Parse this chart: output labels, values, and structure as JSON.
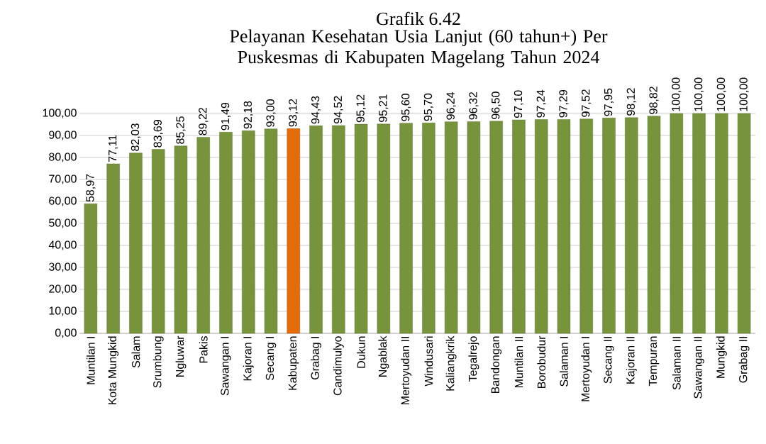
{
  "chart_data": {
    "type": "bar",
    "title": "Grafik 6.42",
    "subtitle": "Pelayanan Kesehatan Usia Lanjut (60 tahun+) Per Puskesmas di Kabupaten Magelang Tahun 2024",
    "categories": [
      "Muntilan I",
      "Kota Mungkid",
      "Salam",
      "Srumbung",
      "Ngluwar",
      "Pakis",
      "Sawangan I",
      "Kajoran I",
      "Secang I",
      "Kabupaten",
      "Grabag I",
      "Candimulyo",
      "Dukun",
      "Ngablak",
      "Mertoyudan II",
      "Windusari",
      "Kaliangkrik",
      "Tegalrejo",
      "Bandongan",
      "Muntilan II",
      "Borobudur",
      "Salaman I",
      "Mertoyudan I",
      "Secang II",
      "Kajoran II",
      "Tempuran",
      "Salaman II",
      "Sawangan II",
      "Mungkid",
      "Grabag II"
    ],
    "values": [
      58.97,
      77.11,
      82.03,
      83.69,
      85.25,
      89.22,
      91.49,
      92.18,
      93.0,
      93.12,
      94.43,
      94.52,
      95.12,
      95.21,
      95.6,
      95.7,
      96.24,
      96.32,
      96.5,
      97.1,
      97.24,
      97.29,
      97.52,
      97.95,
      98.12,
      98.82,
      100,
      100,
      100,
      100
    ],
    "value_labels": [
      "58,97",
      "77,11",
      "82,03",
      "83,69",
      "85,25",
      "89,22",
      "91,49",
      "92,18",
      "93,00",
      "93,12",
      "94,43",
      "94,52",
      "95,12",
      "95,21",
      "95,60",
      "95,70",
      "96,24",
      "96,32",
      "96,50",
      "97,10",
      "97,24",
      "97,29",
      "97,52",
      "97,95",
      "98,12",
      "98,82",
      "100,00",
      "100,00",
      "100,00",
      "100,00"
    ],
    "colors": [
      "#77933c",
      "#77933c",
      "#77933c",
      "#77933c",
      "#77933c",
      "#77933c",
      "#77933c",
      "#77933c",
      "#77933c",
      "#e46c0a",
      "#77933c",
      "#77933c",
      "#77933c",
      "#77933c",
      "#77933c",
      "#77933c",
      "#77933c",
      "#77933c",
      "#77933c",
      "#77933c",
      "#77933c",
      "#77933c",
      "#77933c",
      "#77933c",
      "#77933c",
      "#77933c",
      "#77933c",
      "#77933c",
      "#77933c",
      "#77933c"
    ],
    "ylim": [
      0,
      100
    ],
    "yticks": [
      {
        "value": 0,
        "label": "0,00"
      },
      {
        "value": 10,
        "label": "10,00"
      },
      {
        "value": 20,
        "label": "20,00"
      },
      {
        "value": 30,
        "label": "30,00"
      },
      {
        "value": 40,
        "label": "40,00"
      },
      {
        "value": 50,
        "label": "50,00"
      },
      {
        "value": 60,
        "label": "60,00"
      },
      {
        "value": 70,
        "label": "70,00"
      },
      {
        "value": 80,
        "label": "80,00"
      },
      {
        "value": 90,
        "label": "90,00"
      },
      {
        "value": 100,
        "label": "100,00"
      }
    ],
    "grid": "y"
  }
}
